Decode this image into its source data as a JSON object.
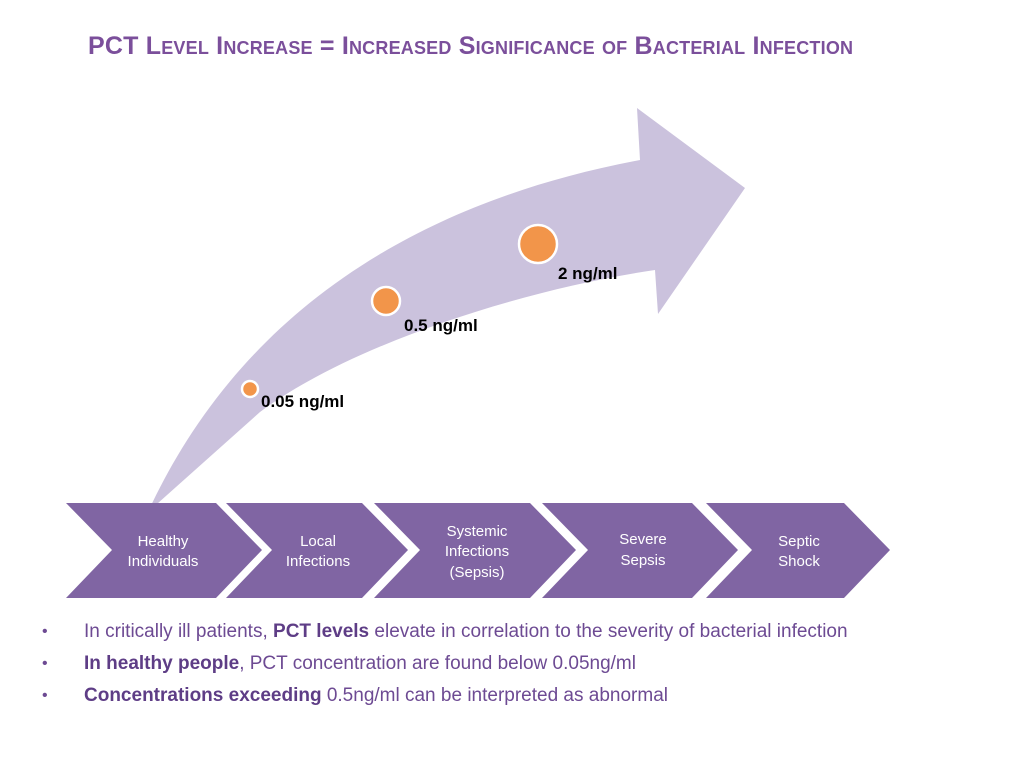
{
  "title": "PCT Level Increase = Increased Significance of Bacterial Infection",
  "colors": {
    "title": "#7b4f9b",
    "arrow": "#cbc2dd",
    "chevron": "#8065a3",
    "marker": "#f2954a",
    "bullet_text": "#6d4a93"
  },
  "markers": [
    {
      "label": "0.05 ng/ml"
    },
    {
      "label": "0.5 ng/ml"
    },
    {
      "label": "2 ng/ml"
    }
  ],
  "stages": [
    {
      "line1": "Healthy",
      "line2": "Individuals",
      "line3": ""
    },
    {
      "line1": "Local",
      "line2": "Infections",
      "line3": ""
    },
    {
      "line1": "Systemic",
      "line2": "Infections",
      "line3": "(Sepsis)"
    },
    {
      "line1": "Severe",
      "line2": "Sepsis",
      "line3": ""
    },
    {
      "line1": "Septic",
      "line2": "Shock",
      "line3": ""
    }
  ],
  "bullets": [
    {
      "pre": "In critically ill patients, ",
      "bold": "PCT levels",
      "post": " elevate in correlation to the severity of bacterial infection"
    },
    {
      "pre": "",
      "bold": "In healthy people",
      "post": ", PCT concentration are found below 0.05ng/ml"
    },
    {
      "pre": "",
      "bold": "Concentrations exceeding",
      "post": " 0.5ng/ml can be interpreted as abnormal"
    }
  ]
}
